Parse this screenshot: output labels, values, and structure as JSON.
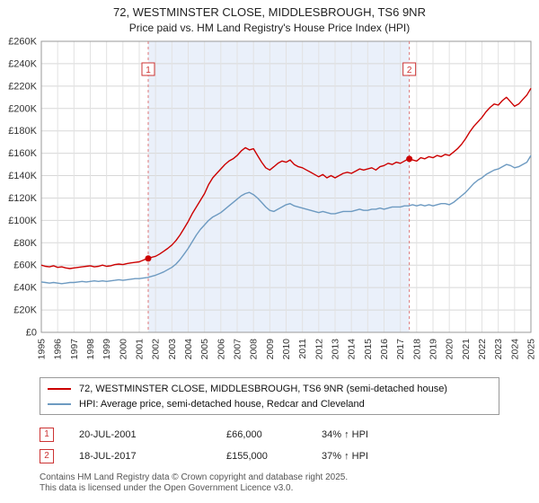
{
  "header": {
    "title": "72, WESTMINSTER CLOSE, MIDDLESBROUGH, TS6 9NR",
    "subtitle": "Price paid vs. HM Land Registry's House Price Index (HPI)"
  },
  "chart_data": {
    "type": "line",
    "xlim": [
      1995,
      2025
    ],
    "ylim": [
      0,
      260
    ],
    "ytick_step": 20,
    "y_unit": "£K",
    "grid": true,
    "shaded_region": {
      "from": 2001.55,
      "to": 2017.55,
      "color": "#eaf0fa"
    },
    "series": [
      {
        "name": "72, WESTMINSTER CLOSE, MIDDLESBROUGH, TS6 9NR (semi-detached house)",
        "color": "#cc0000",
        "x_start": 1995,
        "x_step": 0.25,
        "values": [
          60,
          59,
          58.5,
          59.5,
          58,
          58.5,
          57.5,
          57,
          57.5,
          58,
          58.5,
          59,
          59.5,
          58.5,
          59,
          60,
          59,
          59.5,
          60.5,
          61,
          60.5,
          61.5,
          62,
          62.5,
          63,
          64.5,
          66,
          67,
          68,
          70,
          72.5,
          75,
          78,
          82,
          87,
          93,
          99,
          106,
          112,
          118,
          124,
          132,
          138,
          142,
          146,
          150,
          153,
          155,
          158,
          162,
          165,
          163,
          164,
          158,
          152,
          147,
          145,
          148,
          151,
          153,
          152,
          154,
          150,
          148,
          147,
          145,
          143,
          141,
          139,
          141,
          138,
          140,
          138,
          140,
          142,
          143,
          142,
          144,
          146,
          145,
          146,
          147,
          145,
          148,
          149,
          151,
          150,
          152,
          151,
          153,
          155,
          154,
          153,
          156,
          155,
          157,
          156,
          158,
          157,
          159,
          158,
          161,
          164,
          168,
          173,
          179,
          184,
          188,
          192,
          197,
          201,
          204,
          203,
          207,
          210,
          206,
          202,
          204,
          208,
          212,
          218
        ]
      },
      {
        "name": "HPI: Average price, semi-detached house, Redcar and Cleveland",
        "color": "#6d9ac1",
        "x_start": 1995,
        "x_step": 0.25,
        "values": [
          45,
          44.5,
          44,
          44.5,
          44,
          43.5,
          44,
          44.5,
          44.5,
          45,
          45.5,
          45,
          45.5,
          46,
          45.5,
          46,
          45.5,
          46,
          46.5,
          47,
          46.5,
          47,
          47.5,
          48,
          48,
          48.5,
          49,
          50,
          51,
          52.5,
          54,
          56,
          58,
          61,
          65,
          70,
          75,
          81,
          87,
          92,
          96,
          100,
          103,
          105,
          107,
          110,
          113,
          116,
          119,
          122,
          124,
          125,
          123,
          120,
          116,
          112,
          109,
          108,
          110,
          112,
          114,
          115,
          113,
          112,
          111,
          110,
          109,
          108,
          107,
          108,
          107,
          106,
          106,
          107,
          108,
          108,
          108,
          109,
          110,
          109,
          109,
          110,
          110,
          111,
          110,
          111,
          112,
          112,
          112,
          113,
          113,
          114,
          113,
          114,
          113,
          114,
          113,
          114,
          115,
          115,
          114,
          116,
          119,
          122,
          125,
          129,
          133,
          136,
          138,
          141,
          143,
          145,
          146,
          148,
          150,
          149,
          147,
          148,
          150,
          152,
          158
        ]
      }
    ],
    "markers": [
      {
        "label": "1",
        "x": 2001.55,
        "y": 66
      },
      {
        "label": "2",
        "x": 2017.55,
        "y": 155
      }
    ]
  },
  "legend": {
    "items": [
      {
        "label": "72, WESTMINSTER CLOSE, MIDDLESBROUGH, TS6 9NR (semi-detached house)"
      },
      {
        "label": "HPI: Average price, semi-detached house, Redcar and Cleveland"
      }
    ]
  },
  "annotations": [
    {
      "num": "1",
      "date": "20-JUL-2001",
      "price": "£66,000",
      "hpi": "34% ↑ HPI"
    },
    {
      "num": "2",
      "date": "18-JUL-2017",
      "price": "£155,000",
      "hpi": "37% ↑ HPI"
    }
  ],
  "footer": {
    "line1": "Contains HM Land Registry data © Crown copyright and database right 2025.",
    "line2": "This data is licensed under the Open Government Licence v3.0."
  }
}
